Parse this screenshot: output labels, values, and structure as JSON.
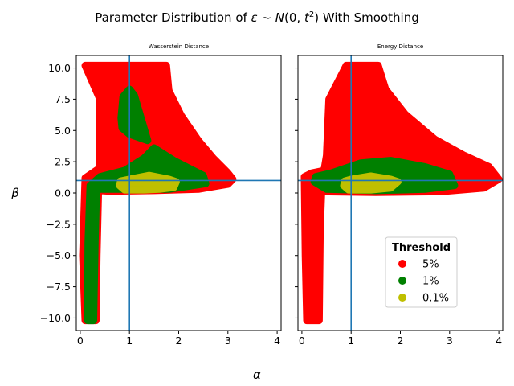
{
  "figure": {
    "suptitle_prefix": "Parameter Distribution of ",
    "suptitle_eps": "ε",
    "suptitle_mid": " ~ ",
    "suptitle_italic_n": "N",
    "suptitle_args": "(0, ",
    "suptitle_t": "t",
    "suptitle_sup": "2",
    "suptitle_suffix": ") With Smoothing",
    "xlabel": "α",
    "ylabel": "β"
  },
  "colors": {
    "threshold_5": "#ff0000",
    "threshold_1": "#008000",
    "threshold_01": "#bfbf00",
    "reference_line": "#1f77b4"
  },
  "legend": {
    "title": "Threshold",
    "entries": [
      {
        "label": "5%",
        "color": "#ff0000"
      },
      {
        "label": "1%",
        "color": "#008000"
      },
      {
        "label": "0.1%",
        "color": "#bfbf00"
      }
    ]
  },
  "chart_data": [
    {
      "type": "scatter",
      "title": "Wasserstein Distance",
      "xlabel": "α",
      "ylabel": "β",
      "xlim": [
        -0.08,
        4.08
      ],
      "ylim": [
        -11,
        11
      ],
      "xticks": [
        0,
        1,
        2,
        3,
        4
      ],
      "yticks": [
        -10.0,
        -7.5,
        -5.0,
        -2.5,
        0.0,
        2.5,
        5.0,
        7.5,
        10.0
      ],
      "reference_lines": {
        "x": 1,
        "y": 1
      },
      "grid": false,
      "series": [
        {
          "threshold": "5%",
          "regions": [
            [
              [
                0.1,
                -10.2
              ],
              [
                0.32,
                -10.2
              ],
              [
                0.34,
                -5
              ],
              [
                0.37,
                0.2
              ],
              [
                0.6,
                0.15
              ],
              [
                1.5,
                0.2
              ],
              [
                2.4,
                0.3
              ],
              [
                3.0,
                0.7
              ],
              [
                3.1,
                1.1
              ],
              [
                3.0,
                1.6
              ],
              [
                2.7,
                2.8
              ],
              [
                2.4,
                4.2
              ],
              [
                2.05,
                6.2
              ],
              [
                1.8,
                8.2
              ],
              [
                1.75,
                10.2
              ],
              [
                0.1,
                10.2
              ],
              [
                0.4,
                7.5
              ],
              [
                0.4,
                2.0
              ],
              [
                0.1,
                1.2
              ],
              [
                0.05,
                -5
              ]
            ]
          ]
        },
        {
          "threshold": "1%",
          "regions": [
            [
              [
                0.15,
                -10.2
              ],
              [
                0.27,
                -10.2
              ],
              [
                0.3,
                -4
              ],
              [
                0.33,
                0.3
              ],
              [
                1.0,
                0.3
              ],
              [
                1.8,
                0.3
              ],
              [
                2.55,
                0.75
              ],
              [
                2.5,
                1.4
              ],
              [
                1.9,
                2.6
              ],
              [
                1.5,
                3.6
              ],
              [
                1.3,
                2.8
              ],
              [
                0.9,
                1.8
              ],
              [
                0.4,
                1.3
              ],
              [
                0.2,
                0.6
              ],
              [
                0.16,
                -4
              ]
            ],
            [
              [
                0.83,
                6.0
              ],
              [
                0.87,
                7.7
              ],
              [
                1.0,
                8.3
              ],
              [
                1.1,
                7.8
              ],
              [
                1.37,
                4.2
              ],
              [
                1.0,
                4.7
              ],
              [
                0.85,
                5.2
              ]
            ]
          ]
        },
        {
          "threshold": "0.1%",
          "regions": [
            [
              [
                0.8,
                0.6
              ],
              [
                0.9,
                0.25
              ],
              [
                1.3,
                0.25
              ],
              [
                1.6,
                0.3
              ],
              [
                1.9,
                0.45
              ],
              [
                1.95,
                0.9
              ],
              [
                1.8,
                1.1
              ],
              [
                1.4,
                1.4
              ],
              [
                1.0,
                1.1
              ],
              [
                0.82,
                0.95
              ]
            ]
          ]
        }
      ]
    },
    {
      "type": "scatter",
      "title": "Energy Distance",
      "xlabel": "α",
      "ylabel": "β",
      "xlim": [
        -0.08,
        4.08
      ],
      "ylim": [
        -11,
        11
      ],
      "xticks": [
        0,
        1,
        2,
        3,
        4
      ],
      "yticks": [
        -10.0,
        -7.5,
        -5.0,
        -2.5,
        0.0,
        2.5,
        5.0,
        7.5,
        10.0
      ],
      "reference_lines": {
        "x": 1,
        "y": 1
      },
      "grid": false,
      "series": [
        {
          "threshold": "5%",
          "regions": [
            [
              [
                0.1,
                -10.2
              ],
              [
                0.35,
                -10.2
              ],
              [
                0.37,
                -3
              ],
              [
                0.4,
                0.1
              ],
              [
                1.5,
                0.05
              ],
              [
                2.8,
                0.1
              ],
              [
                3.7,
                0.4
              ],
              [
                4.0,
                1.1
              ],
              [
                3.8,
                2.1
              ],
              [
                3.3,
                3.0
              ],
              [
                2.7,
                4.3
              ],
              [
                2.1,
                6.3
              ],
              [
                1.7,
                8.3
              ],
              [
                1.55,
                10.2
              ],
              [
                0.9,
                10.2
              ],
              [
                0.55,
                7.5
              ],
              [
                0.5,
                3.0
              ],
              [
                0.45,
                1.8
              ],
              [
                0.2,
                1.6
              ],
              [
                0.05,
                1.3
              ],
              [
                0.07,
                -5
              ]
            ]
          ]
        },
        {
          "threshold": "1%",
          "regions": [
            [
              [
                0.25,
                0.9
              ],
              [
                0.5,
                0.3
              ],
              [
                1.5,
                0.2
              ],
              [
                2.5,
                0.3
              ],
              [
                3.1,
                0.6
              ],
              [
                3.0,
                1.5
              ],
              [
                2.5,
                2.1
              ],
              [
                1.8,
                2.6
              ],
              [
                1.2,
                2.4
              ],
              [
                0.6,
                1.6
              ],
              [
                0.28,
                1.3
              ]
            ]
          ]
        },
        {
          "threshold": "0.1%",
          "regions": [
            [
              [
                0.85,
                0.6
              ],
              [
                0.95,
                0.25
              ],
              [
                1.4,
                0.25
              ],
              [
                1.8,
                0.4
              ],
              [
                1.95,
                0.9
              ],
              [
                1.8,
                1.1
              ],
              [
                1.4,
                1.35
              ],
              [
                1.0,
                1.1
              ],
              [
                0.87,
                0.95
              ]
            ]
          ]
        }
      ]
    }
  ]
}
